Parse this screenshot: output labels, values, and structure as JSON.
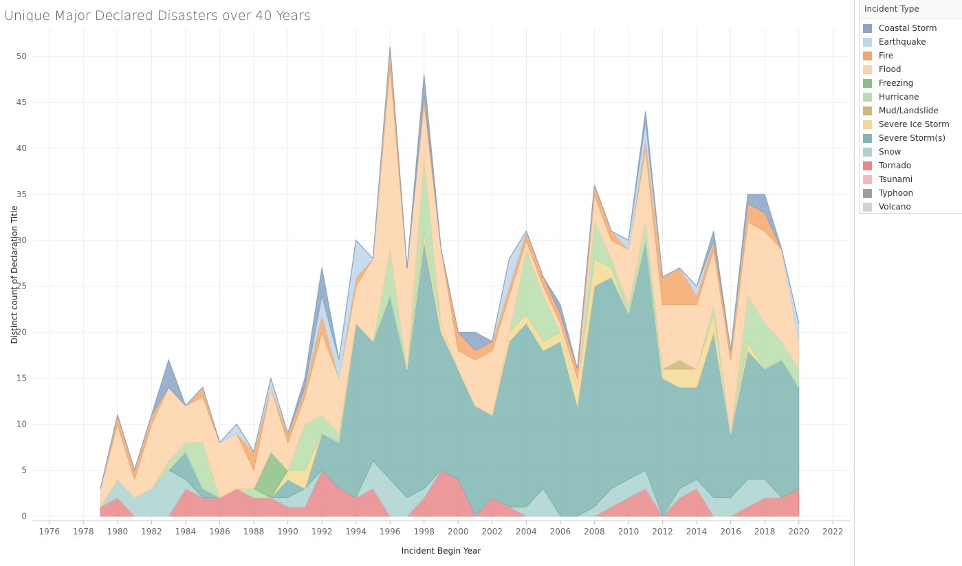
{
  "chart_data": {
    "type": "area",
    "title": "Unique Major Declared Disasters over 40 Years",
    "xlabel": "Incident Begin Year",
    "ylabel": "Distinct count of Declaration Title",
    "xlim": [
      1975,
      2023
    ],
    "ylim": [
      -0.5,
      53
    ],
    "x_ticks": [
      1976,
      1978,
      1980,
      1982,
      1984,
      1986,
      1988,
      1990,
      1992,
      1994,
      1996,
      1998,
      2000,
      2002,
      2004,
      2006,
      2008,
      2010,
      2012,
      2014,
      2016,
      2018,
      2020,
      2022
    ],
    "y_ticks": [
      0,
      5,
      10,
      15,
      20,
      25,
      30,
      35,
      40,
      45,
      50
    ],
    "stacked": true,
    "grid": true,
    "legend_position": "right",
    "legend_title": "Incident Type",
    "years": [
      1979,
      1980,
      1981,
      1982,
      1983,
      1984,
      1985,
      1986,
      1987,
      1988,
      1989,
      1990,
      1991,
      1992,
      1993,
      1994,
      1995,
      1996,
      1997,
      1998,
      1999,
      2000,
      2001,
      2002,
      2003,
      2004,
      2005,
      2006,
      2007,
      2008,
      2009,
      2010,
      2011,
      2012,
      2013,
      2014,
      2015,
      2016,
      2017,
      2018,
      2019,
      2020
    ],
    "series": [
      {
        "name": "Tornado",
        "color": "#e8878a",
        "values": [
          1,
          2,
          0,
          0,
          0,
          3,
          2,
          2,
          3,
          2,
          2,
          1,
          1,
          5,
          3,
          2,
          3,
          0,
          0,
          2,
          5,
          4,
          0,
          2,
          1,
          0,
          0,
          0,
          0,
          0,
          1,
          2,
          3,
          0,
          2,
          3,
          0,
          0,
          1,
          2,
          2,
          3
        ]
      },
      {
        "name": "Snow",
        "color": "#abd3cf",
        "values": [
          0,
          2,
          2,
          3,
          5,
          1,
          0,
          0,
          0,
          0,
          0,
          1,
          2,
          0,
          0,
          0,
          3,
          4,
          2,
          1,
          0,
          0,
          0,
          0,
          0,
          1,
          3,
          0,
          0,
          1,
          2,
          2,
          2,
          0,
          1,
          1,
          2,
          2,
          3,
          2,
          0,
          0
        ]
      },
      {
        "name": "Severe Storm(s)",
        "color": "#7fb6b1",
        "values": [
          0,
          0,
          0,
          0,
          0,
          3,
          1,
          0,
          0,
          0,
          0,
          2,
          0,
          4,
          5,
          19,
          13,
          20,
          14,
          27,
          15,
          12,
          12,
          9,
          18,
          20,
          15,
          19,
          12,
          24,
          23,
          18,
          25,
          15,
          11,
          10,
          18,
          7,
          14,
          12,
          15,
          11
        ]
      },
      {
        "name": "Severe Ice Storm",
        "color": "#f5d993",
        "values": [
          0,
          0,
          0,
          0,
          0,
          0,
          0,
          0,
          0,
          0,
          0,
          1,
          2,
          0,
          0,
          0,
          0,
          0,
          0,
          1,
          1,
          0,
          0,
          0,
          1,
          1,
          1,
          1,
          2,
          3,
          1,
          0,
          0,
          1,
          2,
          2,
          2,
          0,
          1,
          0,
          0,
          0
        ]
      },
      {
        "name": "Mud/Landslide",
        "color": "#cdb77a",
        "values": [
          0,
          0,
          0,
          0,
          0,
          0,
          0,
          0,
          0,
          0,
          0,
          0,
          0,
          0,
          0,
          0,
          0,
          0,
          0,
          0,
          0,
          0,
          0,
          0,
          0,
          0,
          0,
          0,
          0,
          0,
          0,
          0,
          0,
          0,
          1,
          0,
          0,
          0,
          0,
          0,
          0,
          0
        ]
      },
      {
        "name": "Hurricane",
        "color": "#b7deaa",
        "values": [
          0,
          0,
          0,
          0,
          1,
          1,
          5,
          0,
          0,
          1,
          0,
          0,
          5,
          2,
          1,
          0,
          0,
          5,
          0,
          8,
          0,
          0,
          0,
          0,
          0,
          7,
          5,
          0,
          0,
          4,
          1,
          1,
          2,
          0,
          0,
          0,
          1,
          0,
          5,
          5,
          2,
          2
        ]
      },
      {
        "name": "Freezing",
        "color": "#8cc084",
        "values": [
          0,
          0,
          0,
          0,
          0,
          0,
          0,
          0,
          0,
          0,
          5,
          0,
          0,
          0,
          0,
          0,
          0,
          0,
          0,
          0,
          0,
          0,
          0,
          0,
          0,
          0,
          0,
          0,
          0,
          0,
          0,
          0,
          0,
          0,
          0,
          0,
          0,
          0,
          0,
          0,
          0,
          0
        ]
      },
      {
        "name": "Flood",
        "color": "#fdd2a8",
        "values": [
          2,
          6,
          2,
          7,
          8,
          4,
          5,
          6,
          6,
          2,
          7,
          3,
          3,
          9,
          6,
          4,
          9,
          20,
          11,
          6,
          8,
          2,
          5,
          7,
          4,
          1,
          1,
          1,
          1,
          3,
          2,
          6,
          8,
          7,
          6,
          7,
          6,
          8,
          8,
          10,
          10,
          3
        ]
      },
      {
        "name": "Fire",
        "color": "#f4a867",
        "values": [
          0,
          1,
          1,
          1,
          0,
          0,
          1,
          0,
          0,
          2,
          0,
          1,
          1,
          2,
          0,
          1,
          0,
          2,
          0,
          1,
          0,
          2,
          1,
          1,
          1,
          1,
          1,
          1,
          1,
          1,
          1,
          0,
          1,
          3,
          4,
          1,
          1,
          1,
          2,
          2,
          0,
          0
        ]
      },
      {
        "name": "Earthquake",
        "color": "#bcd7ec",
        "values": [
          0,
          0,
          0,
          0,
          0,
          0,
          0,
          0,
          1,
          0,
          1,
          0,
          0,
          2,
          2,
          4,
          0,
          0,
          0,
          0,
          0,
          0,
          0,
          0,
          3,
          0,
          0,
          0,
          0,
          0,
          0,
          1,
          2,
          0,
          0,
          1,
          0,
          0,
          0,
          0,
          0,
          2
        ]
      },
      {
        "name": "Coastal Storm",
        "color": "#89a5c6",
        "values": [
          0,
          0,
          0,
          0,
          3,
          0,
          0,
          0,
          0,
          0,
          0,
          0,
          1,
          3,
          0,
          0,
          0,
          0,
          0,
          2,
          0,
          0,
          2,
          0,
          0,
          0,
          0,
          1,
          0,
          0,
          0,
          0,
          1,
          0,
          0,
          0,
          1,
          0,
          1,
          2,
          0,
          0
        ]
      },
      {
        "name": "Tsunami",
        "color": "#f5b9be",
        "values": [
          0,
          0,
          0,
          0,
          0,
          0,
          0,
          0,
          0,
          0,
          0,
          0,
          0,
          0,
          0,
          0,
          0,
          0,
          0,
          0,
          0,
          0,
          0,
          0,
          0,
          0,
          0,
          0,
          0,
          0,
          0,
          0,
          0,
          0,
          0,
          0,
          0,
          0,
          0,
          0,
          0,
          0
        ]
      },
      {
        "name": "Typhoon",
        "color": "#9e9e9e",
        "values": [
          0,
          0,
          0,
          0,
          0,
          0,
          0,
          0,
          0,
          0,
          0,
          0,
          0,
          0,
          0,
          0,
          0,
          0,
          0,
          0,
          0,
          0,
          0,
          0,
          0,
          0,
          0,
          0,
          0,
          0,
          0,
          0,
          0,
          0,
          0,
          0,
          0,
          0,
          0,
          0,
          0,
          0
        ]
      },
      {
        "name": "Volcano",
        "color": "#d2d2d2",
        "values": [
          0,
          0,
          0,
          0,
          0,
          0,
          0,
          0,
          0,
          0,
          0,
          0,
          0,
          0,
          0,
          0,
          0,
          0,
          0,
          0,
          0,
          0,
          0,
          0,
          0,
          0,
          0,
          0,
          0,
          0,
          0,
          0,
          0,
          0,
          0,
          0,
          0,
          0,
          0,
          0,
          0,
          0
        ]
      }
    ],
    "legend_order": [
      "Coastal Storm",
      "Earthquake",
      "Fire",
      "Flood",
      "Freezing",
      "Hurricane",
      "Mud/Landslide",
      "Severe Ice Storm",
      "Severe Storm(s)",
      "Snow",
      "Tornado",
      "Tsunami",
      "Typhoon",
      "Volcano"
    ]
  }
}
